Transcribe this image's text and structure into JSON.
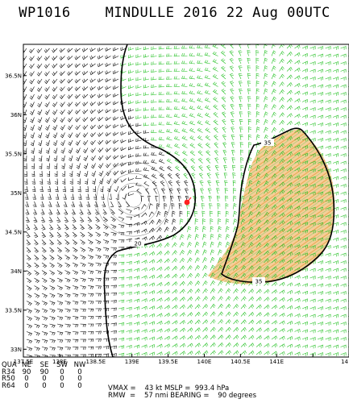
{
  "title": {
    "storm_id": "WP1016",
    "storm_name": "MINDULLE",
    "year": "2016",
    "date": "22 Aug",
    "time": "00UTC"
  },
  "map": {
    "lat_labels": [
      "36.5N",
      "36N",
      "35.5N",
      "35N",
      "34.5N",
      "34N",
      "33.5N",
      "33N"
    ],
    "lon_labels": [
      "137.5E",
      "138E",
      "138.5E",
      "139E",
      "139.5E",
      "140E",
      "140.5E",
      "141E",
      "14"
    ],
    "extent": {
      "lon": [
        137.5,
        142.0
      ],
      "lat": [
        32.9,
        36.9
      ]
    },
    "contour_labels": [
      "35",
      "20",
      "35"
    ],
    "colors": {
      "land_barbs": "#000000",
      "ocean_barbs": "#22c022",
      "gale_shading": "#f0b060",
      "center_marker": "#ff2020",
      "contour": "#000000"
    },
    "center": {
      "lon": 139.58,
      "lat": 34.94
    }
  },
  "wind_radii": {
    "columns": [
      "QUA",
      "NE",
      "SE",
      "SW",
      "NW"
    ],
    "rows": [
      {
        "label": "R34",
        "values": [
          "90",
          "90",
          "0",
          "0"
        ]
      },
      {
        "label": "R50",
        "values": [
          "0",
          "0",
          "0",
          "0"
        ]
      },
      {
        "label": "R64",
        "values": [
          "0",
          "0",
          "0",
          "0"
        ]
      }
    ]
  },
  "stats": {
    "vmax_label": "VMAX",
    "vmax_value": "43",
    "vmax_unit": "kt",
    "mslp_label": "MSLP",
    "mslp_value": "993.4",
    "mslp_unit": "hPa",
    "rmw_label": "RMW",
    "rmw_value": "57",
    "rmw_unit": "nmi",
    "bearing_label": "BEARING",
    "bearing_value": "90",
    "bearing_unit": "degrees"
  }
}
